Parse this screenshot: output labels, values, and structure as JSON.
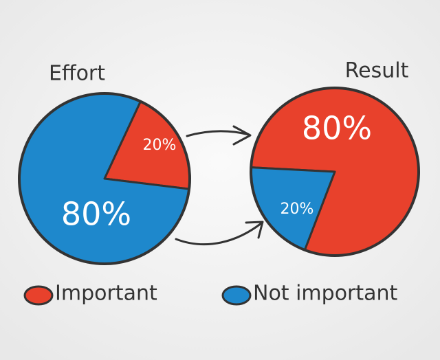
{
  "chart_data": [
    {
      "type": "pie",
      "title": "Effort",
      "categories": [
        "Important",
        "Not important"
      ],
      "values": [
        20,
        80
      ],
      "value_labels": [
        "20%",
        "80%"
      ],
      "colors": [
        "#e8412c",
        "#1e88cc"
      ]
    },
    {
      "type": "pie",
      "title": "Result",
      "values": [
        80,
        20
      ],
      "value_labels": [
        "80%",
        "20%"
      ],
      "colors": [
        "#e8412c",
        "#1e88cc"
      ]
    }
  ]
}
